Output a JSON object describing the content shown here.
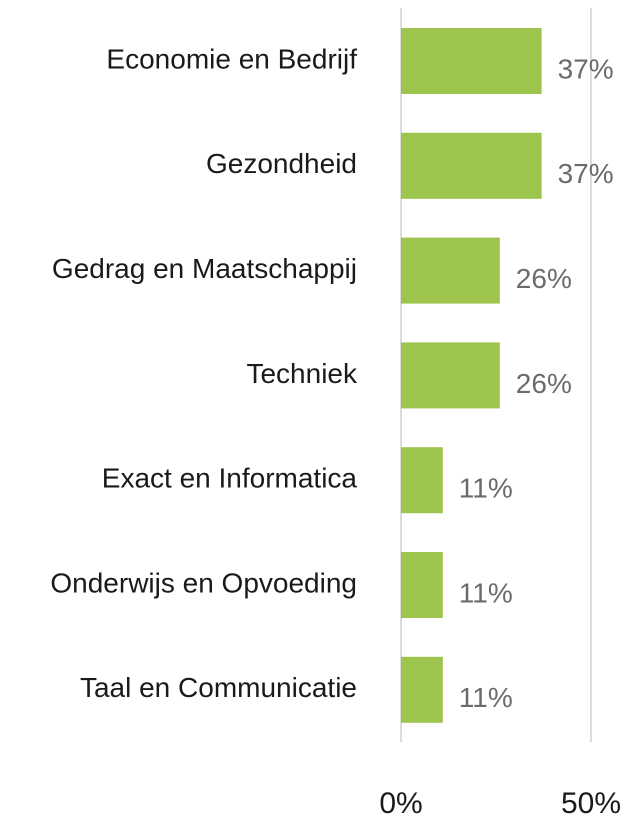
{
  "chart_data": {
    "type": "bar",
    "orientation": "horizontal",
    "categories": [
      "Economie en Bedrijf",
      "Gezondheid",
      "Gedrag en Maatschappij",
      "Techniek",
      "Exact en Informatica",
      "Onderwijs en Opvoeding",
      "Taal en Communicatie"
    ],
    "values": [
      37,
      37,
      26,
      26,
      11,
      11,
      11
    ],
    "value_labels": [
      "37%",
      "37%",
      "26%",
      "26%",
      "11%",
      "11%",
      "11%"
    ],
    "color": "#9dc44d",
    "xlim": [
      0,
      50
    ],
    "xticks": [
      {
        "value": 0,
        "label": "0%"
      },
      {
        "value": 50,
        "label": "50%"
      }
    ],
    "grid": true
  }
}
